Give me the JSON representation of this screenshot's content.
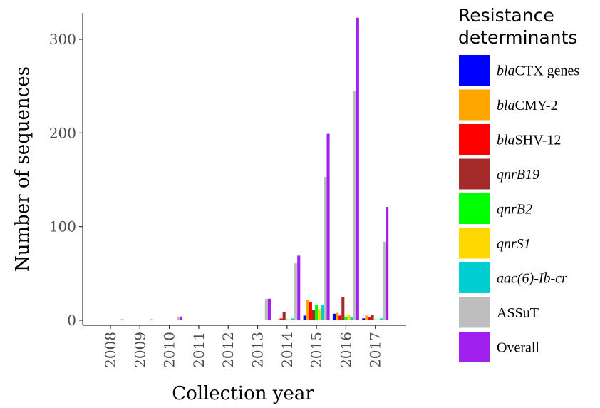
{
  "chart_data": {
    "type": "bar",
    "xlabel": "Collection year",
    "ylabel": "Number of sequences",
    "ylim": [
      0,
      330
    ],
    "yticks": [
      0,
      100,
      200,
      300
    ],
    "categories": [
      "2008",
      "2009",
      "2010",
      "2011",
      "2012",
      "2013",
      "2014",
      "2015",
      "2016",
      "2017"
    ],
    "legend_title": "Resistance determinants",
    "legend_position": "right",
    "series": [
      {
        "name": "blaCTX genes",
        "italic_prefix": "bla",
        "rest": "CTX genes",
        "italic_all": false,
        "color": "#0000ff",
        "values": [
          0,
          0,
          0,
          0,
          0,
          0,
          0,
          5,
          7,
          2
        ]
      },
      {
        "name": "blaCMY-2",
        "italic_prefix": "bla",
        "rest": "CMY-2",
        "italic_all": false,
        "color": "#ffa500",
        "values": [
          0,
          0,
          0,
          0,
          0,
          0,
          1,
          22,
          8,
          5
        ]
      },
      {
        "name": "blaSHV-12",
        "italic_prefix": "bla",
        "rest": "SHV-12",
        "italic_all": false,
        "color": "#ff0000",
        "values": [
          0,
          0,
          0,
          0,
          0,
          0,
          2,
          19,
          5,
          3
        ]
      },
      {
        "name": "qnrB19",
        "italic_prefix": "",
        "rest": "qnrB19",
        "italic_all": true,
        "color": "#a52a2a",
        "values": [
          0,
          0,
          0,
          0,
          0,
          0,
          9,
          11,
          25,
          6
        ]
      },
      {
        "name": "qnrB2",
        "italic_prefix": "",
        "rest": "qnrB2",
        "italic_all": true,
        "color": "#00ff00",
        "values": [
          0,
          0,
          0,
          0,
          0,
          0,
          1,
          16,
          4,
          1
        ]
      },
      {
        "name": "qnrS1",
        "italic_prefix": "",
        "rest": "qnrS1",
        "italic_all": true,
        "color": "#ffd700",
        "values": [
          0,
          0,
          0,
          0,
          0,
          0,
          1,
          12,
          6,
          1
        ]
      },
      {
        "name": "aac(6)-Ib-cr",
        "italic_prefix": "",
        "rest": "aac(6)-Ib-cr",
        "italic_all": true,
        "color": "#00ced1",
        "values": [
          0,
          0,
          0,
          0,
          0,
          0,
          2,
          16,
          3,
          2
        ]
      },
      {
        "name": "ASSuT",
        "italic_prefix": "",
        "rest": "ASSuT",
        "italic_all": false,
        "color": "#bebebe",
        "values": [
          0,
          0,
          3,
          0,
          0,
          23,
          61,
          153,
          245,
          84
        ]
      },
      {
        "name": "Overall",
        "italic_prefix": "",
        "rest": "Overall",
        "italic_all": false,
        "color": "#a020f0",
        "values": [
          1,
          1,
          4,
          0,
          0,
          23,
          69,
          199,
          323,
          121
        ]
      }
    ]
  }
}
